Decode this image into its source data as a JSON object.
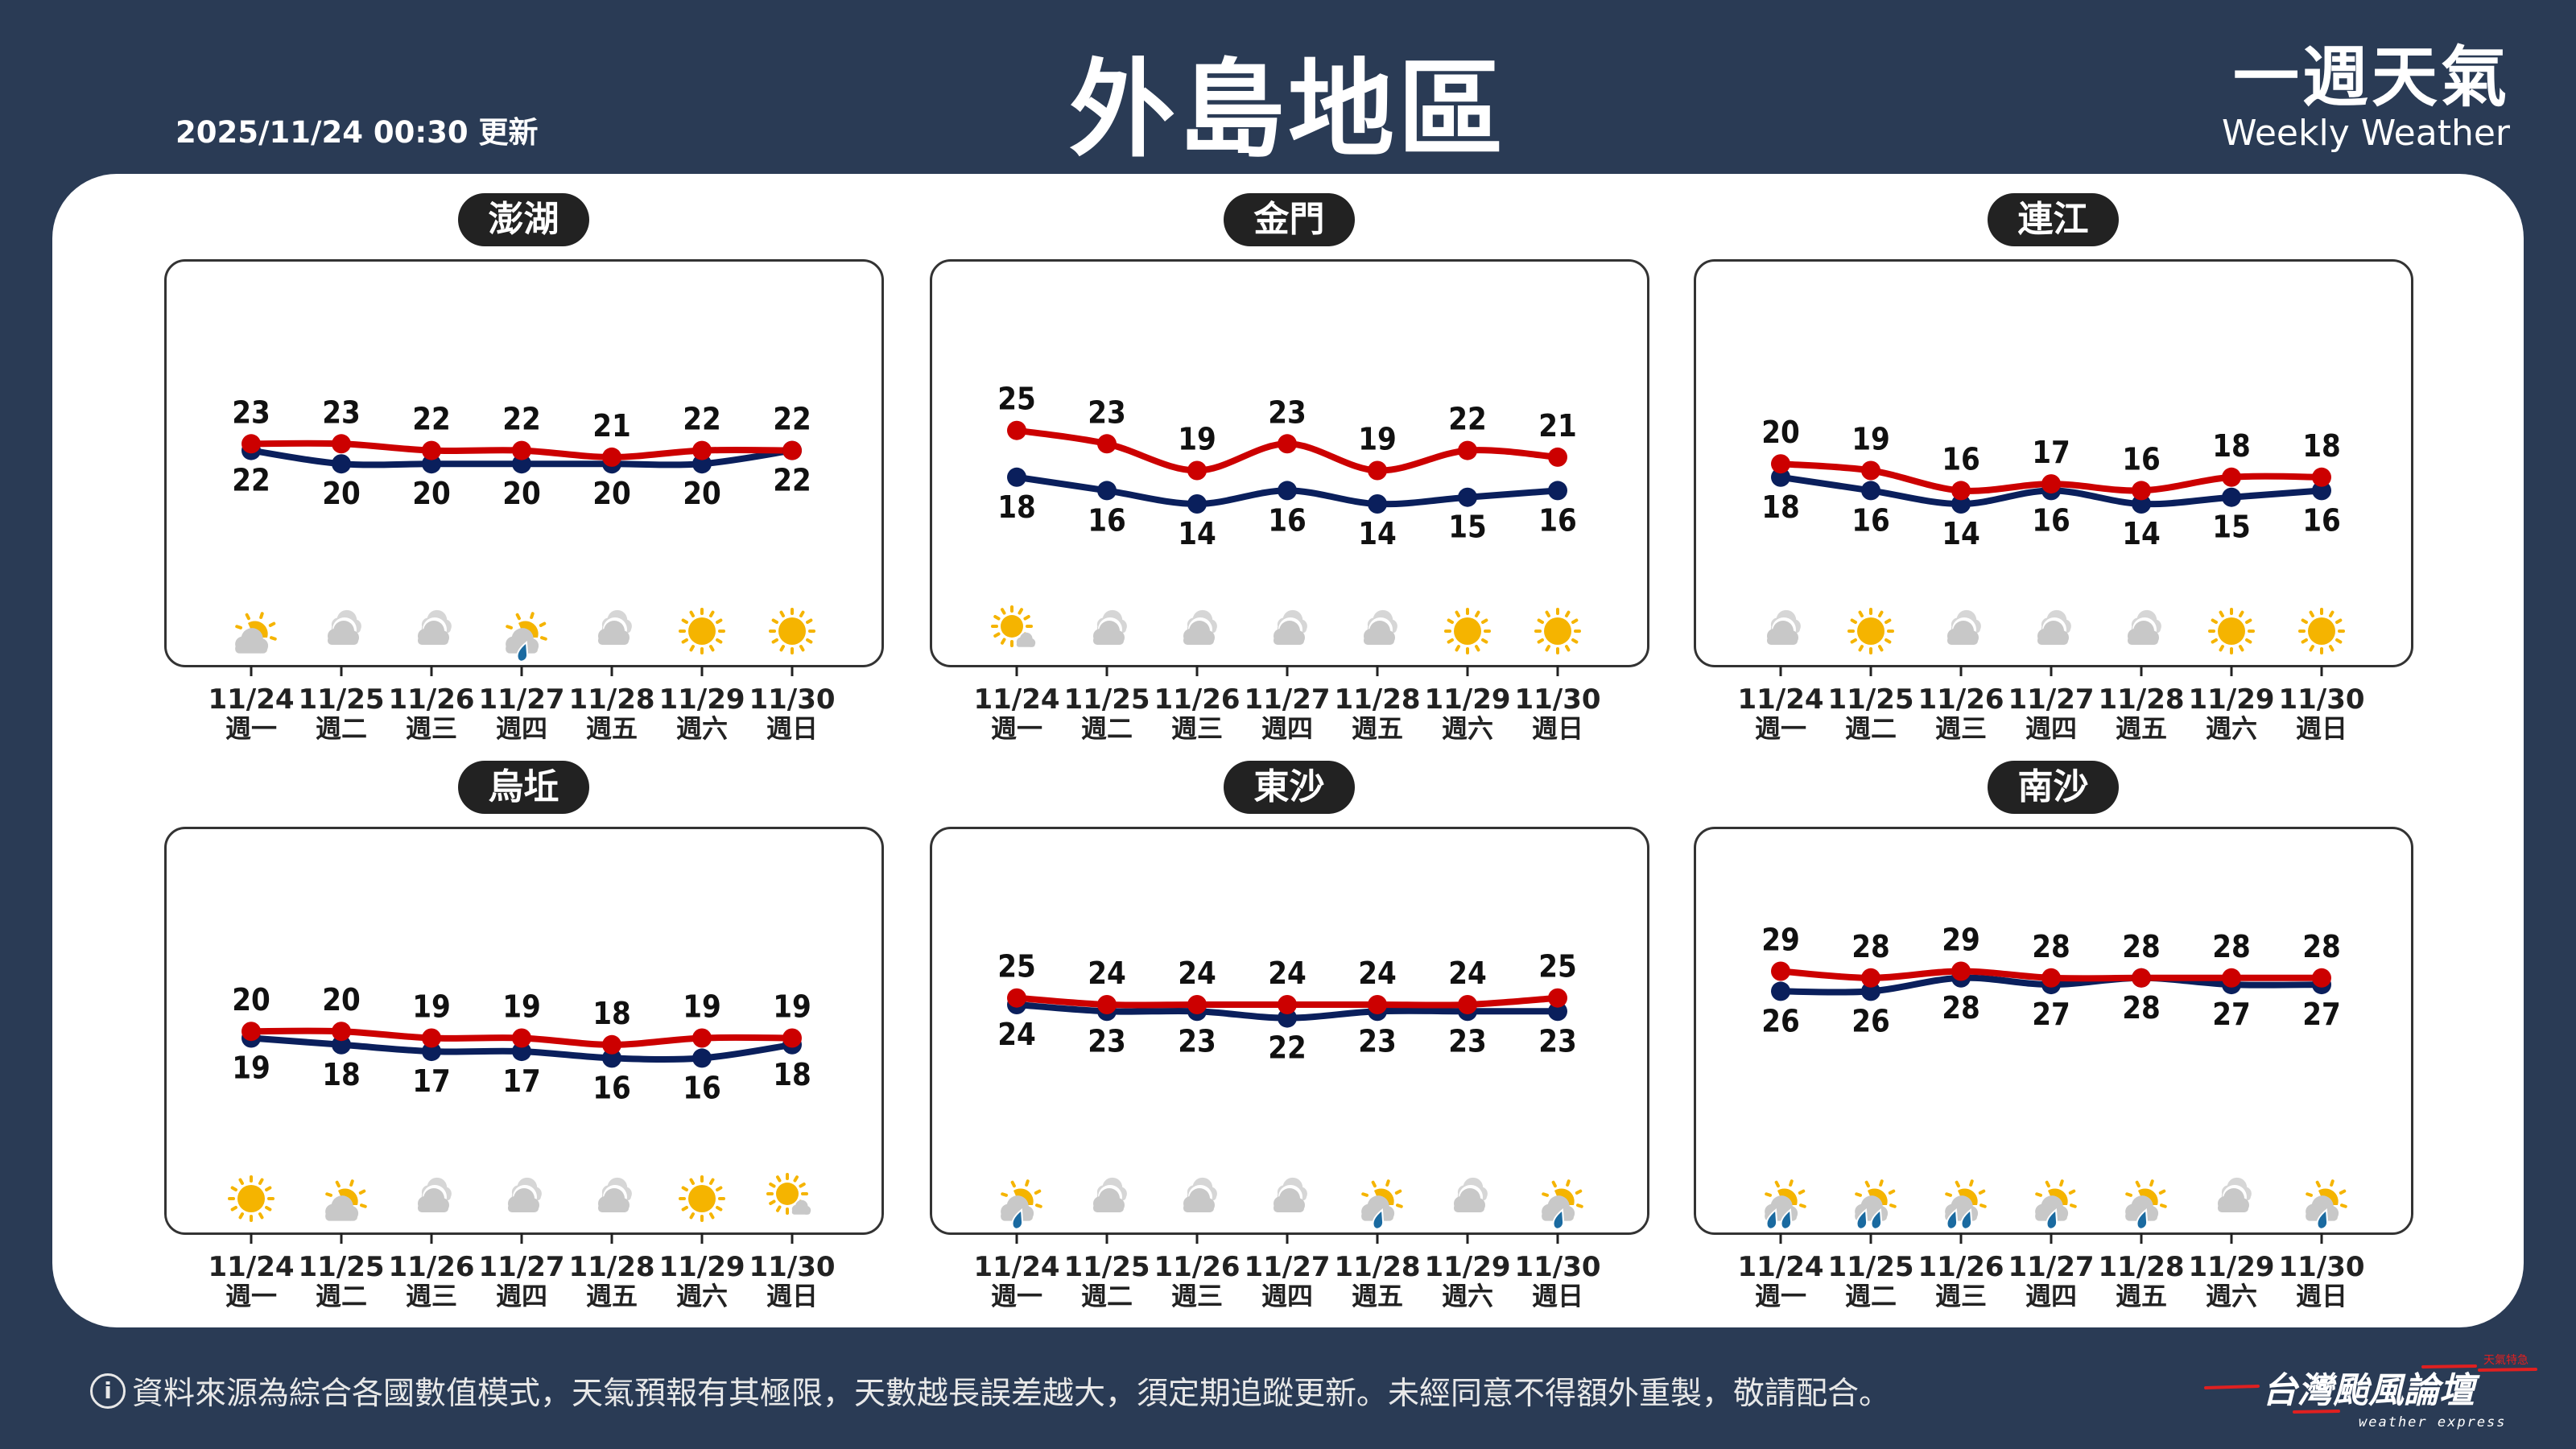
{
  "header": {
    "updated": "2025/11/24 00:30 更新",
    "title": "外島地區",
    "brand_zh": "一週天氣",
    "brand_en": "Weekly Weather"
  },
  "colors": {
    "background": "#2a3b55",
    "high": "#cc0000",
    "low": "#0a1f5c",
    "cloud": "#c8c8c8",
    "sun": "#f5b400",
    "rain": "#1a6aa0"
  },
  "days": [
    {
      "date": "11/24",
      "weekday": "週一"
    },
    {
      "date": "11/25",
      "weekday": "週二"
    },
    {
      "date": "11/26",
      "weekday": "週三"
    },
    {
      "date": "11/27",
      "weekday": "週四"
    },
    {
      "date": "11/28",
      "weekday": "週五"
    },
    {
      "date": "11/29",
      "weekday": "週六"
    },
    {
      "date": "11/30",
      "weekday": "週日"
    }
  ],
  "chart_data": [
    {
      "type": "line",
      "name": "澎湖",
      "high": [
        23,
        23,
        22,
        22,
        21,
        22,
        22
      ],
      "low": [
        22,
        20,
        20,
        20,
        20,
        20,
        22
      ],
      "icons": [
        "partly-cloudy",
        "cloudy",
        "cloudy",
        "partly-cloudy-rain",
        "cloudy",
        "sunny",
        "sunny"
      ]
    },
    {
      "type": "line",
      "name": "金門",
      "high": [
        25,
        23,
        19,
        23,
        19,
        22,
        21
      ],
      "low": [
        18,
        16,
        14,
        16,
        14,
        15,
        16
      ],
      "icons": [
        "sunny-cloud",
        "cloudy",
        "cloudy",
        "cloudy",
        "cloudy",
        "sunny",
        "sunny"
      ]
    },
    {
      "type": "line",
      "name": "連江",
      "high": [
        20,
        19,
        16,
        17,
        16,
        18,
        18
      ],
      "low": [
        18,
        16,
        14,
        16,
        14,
        15,
        16
      ],
      "icons": [
        "cloudy",
        "sunny",
        "cloudy",
        "cloudy",
        "cloudy",
        "sunny",
        "sunny"
      ]
    },
    {
      "type": "line",
      "name": "烏坵",
      "high": [
        20,
        20,
        19,
        19,
        18,
        19,
        19
      ],
      "low": [
        19,
        18,
        17,
        17,
        16,
        16,
        18
      ],
      "icons": [
        "sunny",
        "partly-cloudy",
        "cloudy",
        "cloudy",
        "cloudy",
        "sunny",
        "sunny-cloud"
      ]
    },
    {
      "type": "line",
      "name": "東沙",
      "high": [
        25,
        24,
        24,
        24,
        24,
        24,
        25
      ],
      "low": [
        24,
        23,
        23,
        22,
        23,
        23,
        23
      ],
      "icons": [
        "partly-cloudy-rain",
        "cloudy",
        "cloudy",
        "cloudy",
        "partly-cloudy-rain",
        "cloudy",
        "partly-cloudy-rain"
      ]
    },
    {
      "type": "line",
      "name": "南沙",
      "high": [
        29,
        28,
        29,
        28,
        28,
        28,
        28
      ],
      "low": [
        26,
        26,
        28,
        27,
        28,
        27,
        27
      ],
      "icons": [
        "partly-cloudy-heavy-rain",
        "partly-cloudy-heavy-rain",
        "partly-cloudy-heavy-rain",
        "partly-cloudy-rain",
        "partly-cloudy-rain",
        "cloudy",
        "partly-cloudy-rain"
      ]
    }
  ],
  "footer": {
    "info_icon": "info-icon",
    "disclaimer": "資料來源為綜合各國數值模式，天氣預報有其極限，天數越長誤差越大，須定期追蹤更新。未經同意不得額外重製，敬請配合。",
    "logo_zh": "台灣颱風論壇",
    "logo_en": "weather express",
    "logo_tag": "天氣特急"
  }
}
